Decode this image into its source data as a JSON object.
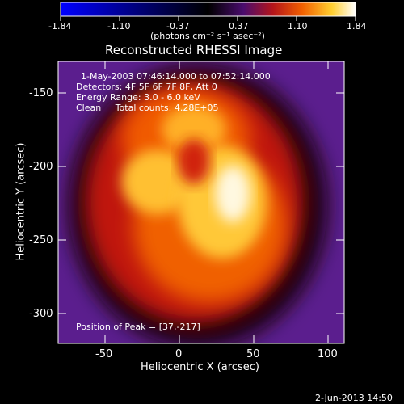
{
  "colorbar": {
    "ticks": [
      "-1.84",
      "-1.10",
      "-0.37",
      "0.37",
      "1.10",
      "1.84"
    ],
    "unit_label": "(photons cm⁻² s⁻¹ asec⁻²)",
    "colors": [
      "#0000ff",
      "#000000",
      "#5a0f7a",
      "#c81e14",
      "#ff7800",
      "#ffdc3c",
      "#ffffff"
    ]
  },
  "plot": {
    "title": "Reconstructed RHESSI Image",
    "info_lines": [
      "1-May-2003 07:46:14.000 to 07:52:14.000",
      "Detectors: 4F 5F 6F 7F 8F, Att 0",
      "Energy Range: 3.0 - 6.0 keV",
      "Clean     Total counts: 4.28E+05"
    ],
    "peak_label": "Position of Peak = [37,-217]",
    "xlabel": "Heliocentric X (arcsec)",
    "ylabel": "Heliocentric Y (arcsec)",
    "xticks": [
      "-50",
      "0",
      "50",
      "100"
    ],
    "yticks": [
      "-150",
      "-200",
      "-250",
      "-300"
    ],
    "xlim": [
      -82,
      112
    ],
    "ylim": [
      -320,
      -135
    ]
  },
  "timestamp": "2-Jun-2013 14:50"
}
